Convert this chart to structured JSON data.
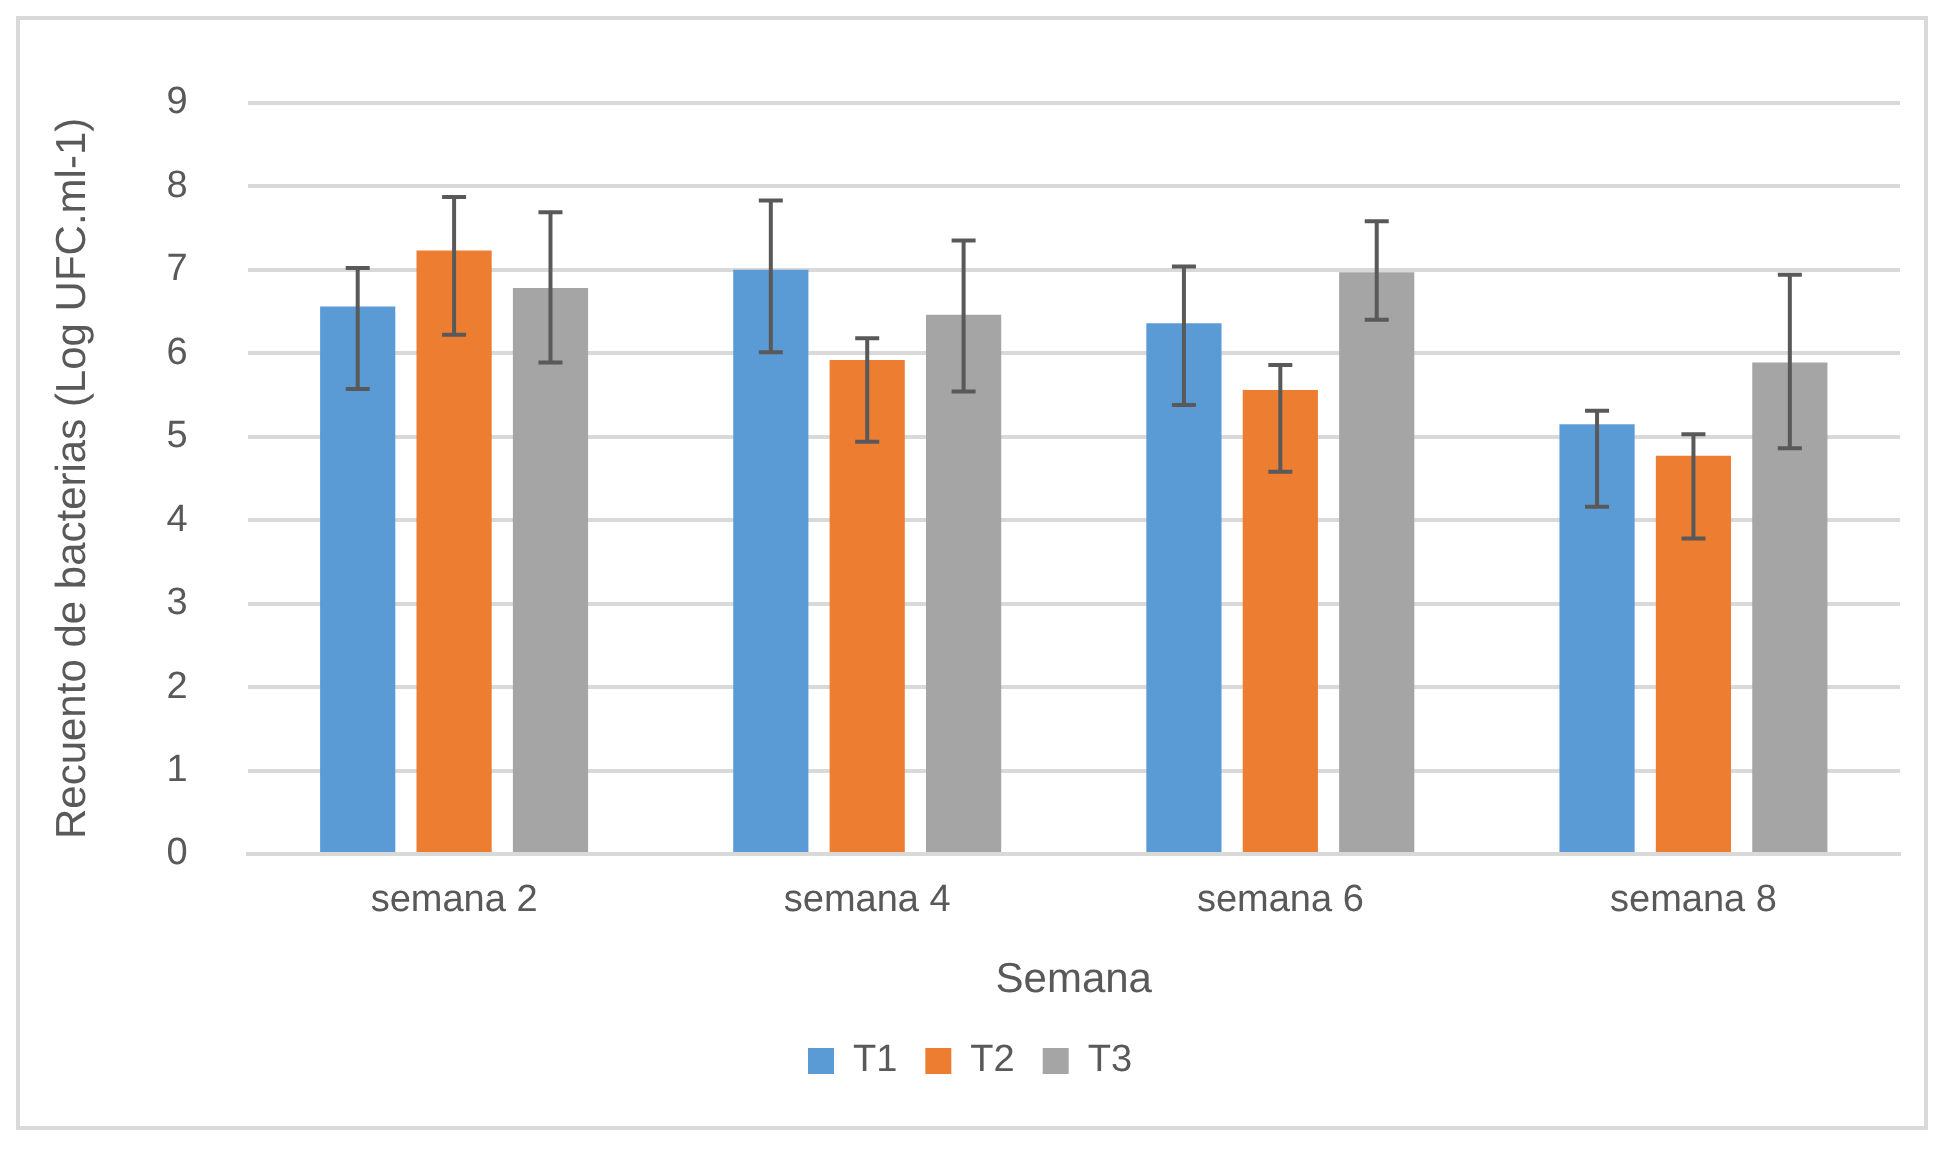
{
  "chart_data": {
    "type": "bar",
    "xlabel": "Semana",
    "ylabel": "Recuento de bacterias (Log UFC.ml-1)",
    "categories": [
      "semana 2",
      "semana 4",
      "semana 6",
      "semana 8"
    ],
    "series": [
      {
        "name": "T1",
        "color": "#5b9bd5",
        "values": [
          6.56,
          7.0,
          6.36,
          5.15
        ],
        "errors": [
          [
            5.57,
            7.02
          ],
          [
            6.01,
            7.83
          ],
          [
            5.38,
            7.04
          ],
          [
            4.16,
            5.31
          ]
        ]
      },
      {
        "name": "T2",
        "color": "#ed7d31",
        "values": [
          7.23,
          5.92,
          5.56,
          4.77
        ],
        "errors": [
          [
            6.22,
            7.87
          ],
          [
            4.94,
            6.18
          ],
          [
            4.58,
            5.86
          ],
          [
            3.78,
            5.03
          ]
        ]
      },
      {
        "name": "T3",
        "color": "#a5a5a5",
        "values": [
          6.78,
          6.46,
          6.97,
          5.89
        ],
        "errors": [
          [
            5.89,
            7.69
          ],
          [
            5.54,
            7.35
          ],
          [
            6.4,
            7.58
          ],
          [
            4.86,
            6.94
          ]
        ]
      }
    ],
    "ylim": [
      0,
      9
    ],
    "yticks": [
      0,
      1,
      2,
      3,
      4,
      5,
      6,
      7,
      8,
      9
    ],
    "grid": "y",
    "legend": "bottom"
  }
}
